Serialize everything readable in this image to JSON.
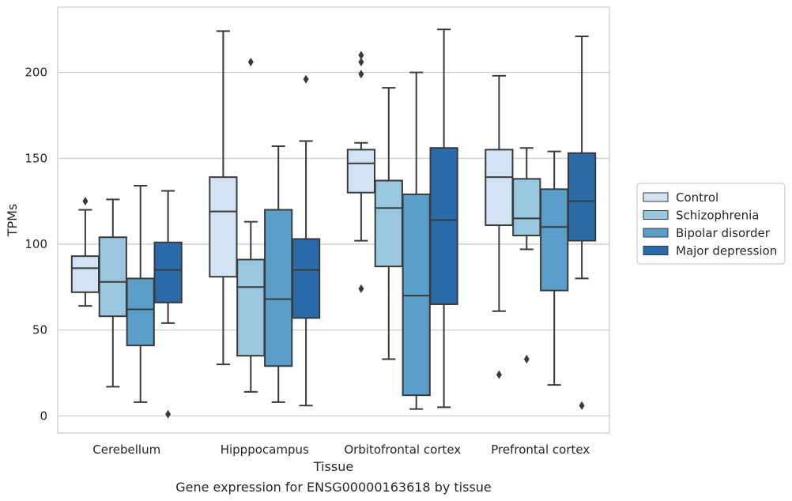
{
  "caption": "Gene expression for ENSG00000163618 by tissue",
  "chart_data": {
    "type": "box",
    "title": "",
    "xlabel": "Tissue",
    "ylabel": "TPMs",
    "ylim": [
      -10,
      238
    ],
    "yticks": [
      0,
      50,
      100,
      150,
      200
    ],
    "grid": "horizontal",
    "legend_position": "right",
    "categories": [
      "Cerebellum",
      "Hipppocampus",
      "Orbitofrontal cortex",
      "Prefrontal cortex"
    ],
    "series": [
      {
        "name": "Control",
        "color": "#d2e3f3",
        "boxes": [
          {
            "whislo": 64,
            "q1": 72,
            "med": 86,
            "q3": 93,
            "whishi": 120,
            "fliers": [
              125
            ]
          },
          {
            "whislo": 30,
            "q1": 81,
            "med": 119,
            "q3": 139,
            "whishi": 224,
            "fliers": []
          },
          {
            "whislo": 102,
            "q1": 130,
            "med": 147,
            "q3": 155,
            "whishi": 159,
            "fliers": [
              210,
              206,
              199,
              74
            ]
          },
          {
            "whislo": 61,
            "q1": 111,
            "med": 139,
            "q3": 155,
            "whishi": 198,
            "fliers": [
              24
            ]
          }
        ]
      },
      {
        "name": "Schizophrenia",
        "color": "#9ac7e0",
        "boxes": [
          {
            "whislo": 17,
            "q1": 58,
            "med": 78,
            "q3": 104,
            "whishi": 126,
            "fliers": []
          },
          {
            "whislo": 14,
            "q1": 35,
            "med": 75,
            "q3": 91,
            "whishi": 113,
            "fliers": [
              206
            ]
          },
          {
            "whislo": 33,
            "q1": 87,
            "med": 121,
            "q3": 137,
            "whishi": 191,
            "fliers": []
          },
          {
            "whislo": 97,
            "q1": 105,
            "med": 115,
            "q3": 138,
            "whishi": 156,
            "fliers": [
              33
            ]
          }
        ]
      },
      {
        "name": "Bipolar disorder",
        "color": "#5a9ec9",
        "boxes": [
          {
            "whislo": 8,
            "q1": 41,
            "med": 62,
            "q3": 80,
            "whishi": 134,
            "fliers": []
          },
          {
            "whislo": 8,
            "q1": 29,
            "med": 68,
            "q3": 120,
            "whishi": 157,
            "fliers": []
          },
          {
            "whislo": 4,
            "q1": 12,
            "med": 70,
            "q3": 129,
            "whishi": 200,
            "fliers": []
          },
          {
            "whislo": 18,
            "q1": 73,
            "med": 110,
            "q3": 132,
            "whishi": 154,
            "fliers": []
          }
        ]
      },
      {
        "name": "Major depression",
        "color": "#2b6aa9",
        "boxes": [
          {
            "whislo": 54,
            "q1": 66,
            "med": 85,
            "q3": 101,
            "whishi": 131,
            "fliers": [
              1
            ]
          },
          {
            "whislo": 6,
            "q1": 57,
            "med": 85,
            "q3": 103,
            "whishi": 160,
            "fliers": [
              196
            ]
          },
          {
            "whislo": 5,
            "q1": 65,
            "med": 114,
            "q3": 156,
            "whishi": 225,
            "fliers": []
          },
          {
            "whislo": 80,
            "q1": 102,
            "med": 125,
            "q3": 153,
            "whishi": 221,
            "fliers": [
              6
            ]
          }
        ]
      }
    ]
  }
}
